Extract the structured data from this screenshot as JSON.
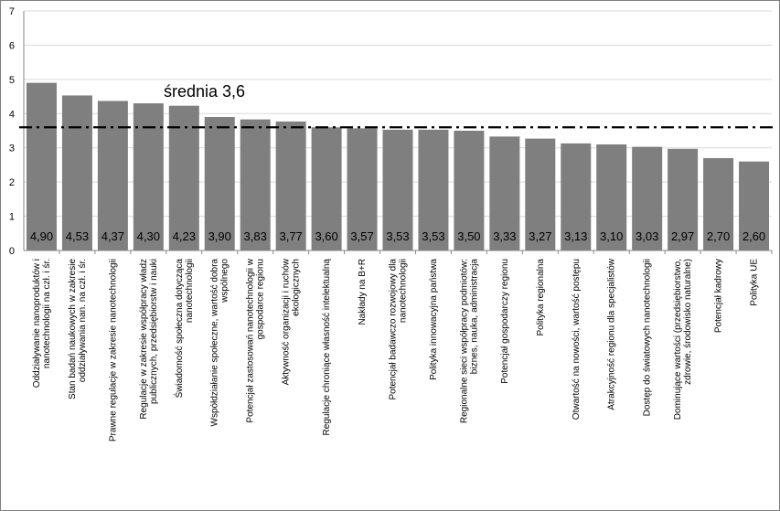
{
  "chart_data": {
    "type": "bar",
    "title": "",
    "xlabel": "",
    "ylabel": "",
    "ylim": [
      0,
      7
    ],
    "yticks": [
      0,
      1,
      2,
      3,
      4,
      5,
      6,
      7
    ],
    "grid": "horizontal",
    "bar_color": "#7f7f7f",
    "categories": [
      [
        "Oddziaływanie nanoproduktów i",
        "nanotechnologii na czł. i śr."
      ],
      [
        "Stan badań naukowych w zakresie",
        "oddziaływania nan. na czł. i śr."
      ],
      [
        "Prawne regulacje w zakresie nanotechnologii"
      ],
      [
        "Regulacje w zakresie współpracy władz",
        "publicznych, przedsiębiorstw i nauki"
      ],
      [
        "Świadomość społeczna dotycząca",
        "nanotechnologii"
      ],
      [
        "Współdziałanie społeczne, wartość dobra",
        "wspólnego"
      ],
      [
        "Potencjał zastosowań nanotechnologii w",
        "gospodarce regionu"
      ],
      [
        "Aktywność organizacji i ruchów",
        "ekologicznych"
      ],
      [
        "Regulacje chroniące własność intelektualną"
      ],
      [
        "Nakłady na B+R"
      ],
      [
        "Potencjał badawczo rozwojowy dla",
        "nanotechnologii"
      ],
      [
        "Polityka innowacyjna państwa"
      ],
      [
        "Regionalne sieci współpracy podmiotów:",
        "biznes, nauka, administracja"
      ],
      [
        "Potencjał gospodarczy regionu"
      ],
      [
        "Polityka regionalna"
      ],
      [
        "Otwartość na nowości, wartość postępu"
      ],
      [
        "Atrakcyjność regionu dla specjalistów"
      ],
      [
        "Dostęp do światowych nanotechnologii"
      ],
      [
        "Dominujące wartości (przedsiębiorstwo,",
        "zdrowie, środowisko naturalne)"
      ],
      [
        "Potencjał kadrowy"
      ],
      [
        "Polityka UE"
      ]
    ],
    "values": [
      4.9,
      4.53,
      4.37,
      4.3,
      4.23,
      3.9,
      3.83,
      3.77,
      3.6,
      3.57,
      3.53,
      3.53,
      3.5,
      3.33,
      3.27,
      3.13,
      3.1,
      3.03,
      2.97,
      2.7,
      2.6
    ],
    "value_labels": [
      "4,90",
      "4,53",
      "4,37",
      "4,30",
      "4,23",
      "3,90",
      "3,83",
      "3,77",
      "3,60",
      "3,57",
      "3,53",
      "3,53",
      "3,50",
      "3,33",
      "3,27",
      "3,13",
      "3,10",
      "3,03",
      "2,97",
      "2,70",
      "2,60"
    ],
    "reference_line": {
      "value": 3.6,
      "style": "dash-dot",
      "color": "#000000"
    },
    "annotation": "średnia  3,6"
  }
}
